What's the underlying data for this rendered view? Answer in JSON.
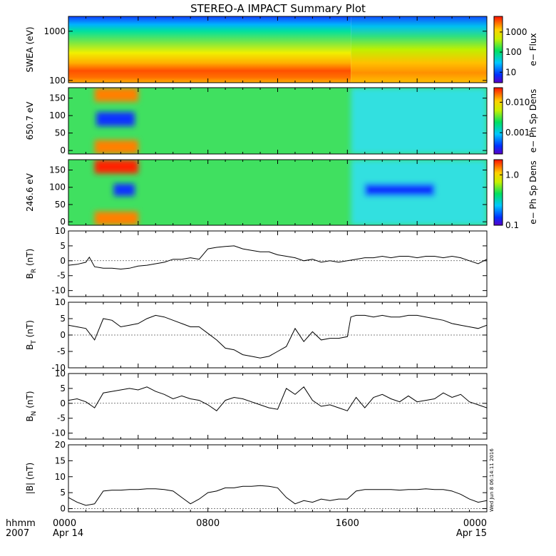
{
  "title": "STEREO-A IMPACT Summary Plot",
  "timestamp_label": "Wed Jun  8 06:14:11 2016",
  "x_axis": {
    "label_line1": "hhmm",
    "label_line2": "2007",
    "ticks": [
      {
        "t": 0,
        "top": "0000",
        "bottom": "Apr 14"
      },
      {
        "t": 8,
        "top": "0800",
        "bottom": ""
      },
      {
        "t": 16,
        "top": "1600",
        "bottom": ""
      },
      {
        "t": 24,
        "top": "0000",
        "bottom": "Apr 15"
      }
    ],
    "range_hours": [
      0,
      24
    ]
  },
  "chart_data": [
    {
      "id": "swea",
      "type": "heatmap",
      "ylabel": "SWEA (eV)",
      "yscale": "log",
      "ylim": [
        90,
        2000
      ],
      "yticks": [
        "100",
        "1000"
      ],
      "colorbar": {
        "label": "e− Flux",
        "scale": "log",
        "range": [
          3,
          6000
        ],
        "ticks": [
          "10",
          "100",
          "1000"
        ]
      },
      "features": [
        {
          "band": "low energy (~100-300 eV)",
          "hours": [
            0,
            16.2
          ],
          "level": "red"
        },
        {
          "band": "low energy (~100-300 eV)",
          "hours": [
            16.2,
            24
          ],
          "level": "orange"
        },
        {
          "band": "~400-1000 eV",
          "hours": [
            0,
            24
          ],
          "level": "yellow-green"
        },
        {
          "band": "~1500-2000 eV",
          "hours": [
            0,
            24
          ],
          "level": "blue"
        }
      ]
    },
    {
      "id": "pad650",
      "type": "heatmap",
      "ylabel": "650.7 eV",
      "ylim": [
        -10,
        180
      ],
      "yticks": [
        "0",
        "50",
        "100",
        "150"
      ],
      "colorbar": {
        "label": "e− Ph Sp Dens",
        "scale": "log",
        "range": [
          0.0002,
          0.03
        ],
        "ticks": [
          "0.001",
          "0.010"
        ]
      },
      "features": [
        {
          "hours": [
            1.5,
            4.0
          ],
          "pitch": [
            140,
            180
          ],
          "level": "orange"
        },
        {
          "hours": [
            1.5,
            4.0
          ],
          "pitch": [
            -10,
            30
          ],
          "level": "orange"
        },
        {
          "hours": [
            1.6,
            3.8
          ],
          "pitch": [
            70,
            110
          ],
          "level": "blue"
        },
        {
          "hours": [
            16.2,
            24
          ],
          "pitch": [
            -10,
            180
          ],
          "level": "cyan"
        }
      ]
    },
    {
      "id": "pad246",
      "type": "heatmap",
      "ylabel": "246.6 eV",
      "ylim": [
        -10,
        180
      ],
      "yticks": [
        "0",
        "50",
        "100",
        "150"
      ],
      "colorbar": {
        "label": "e− Ph Sp Dens",
        "scale": "log",
        "range": [
          0.1,
          2.0
        ],
        "ticks": [
          "0.1",
          "1.0"
        ]
      },
      "features": [
        {
          "hours": [
            1.5,
            4.0
          ],
          "pitch": [
            140,
            180
          ],
          "level": "red"
        },
        {
          "hours": [
            1.5,
            4.0
          ],
          "pitch": [
            -10,
            30
          ],
          "level": "orange"
        },
        {
          "hours": [
            2.6,
            3.8
          ],
          "pitch": [
            75,
            110
          ],
          "level": "blue"
        },
        {
          "hours": [
            16.2,
            24
          ],
          "pitch": [
            -10,
            180
          ],
          "level": "cyan"
        },
        {
          "hours": [
            17.0,
            21.0
          ],
          "pitch": [
            75,
            110
          ],
          "level": "blue"
        }
      ]
    },
    {
      "id": "br",
      "type": "line",
      "ylabel": "B",
      "ylabel_sub": "R",
      "ylabel_unit": " (nT)",
      "ylim": [
        -12,
        10
      ],
      "yticks": [
        "10",
        "5",
        "0",
        "-5",
        "-10"
      ],
      "x": [
        0,
        0.5,
        1.0,
        1.2,
        1.5,
        2.0,
        2.5,
        3.0,
        3.5,
        4.0,
        4.5,
        5.0,
        5.5,
        6.0,
        6.5,
        7.0,
        7.5,
        8.0,
        8.5,
        9.0,
        9.5,
        10.0,
        10.5,
        11.0,
        11.5,
        12.0,
        12.5,
        13.0,
        13.5,
        14.0,
        14.5,
        15.0,
        15.5,
        16.0,
        16.5,
        17.0,
        17.5,
        18.0,
        18.5,
        19.0,
        19.5,
        20.0,
        20.5,
        21.0,
        21.5,
        22.0,
        22.5,
        23.0,
        23.5,
        24.0
      ],
      "y": [
        -1.5,
        -1.2,
        -0.5,
        1.2,
        -2.0,
        -2.5,
        -2.5,
        -2.8,
        -2.5,
        -1.8,
        -1.5,
        -1.0,
        -0.5,
        0.5,
        0.5,
        1.0,
        0.5,
        4.0,
        4.5,
        4.8,
        5.0,
        4.0,
        3.5,
        3.0,
        3.0,
        2.0,
        1.5,
        1.0,
        0.0,
        0.5,
        -0.5,
        0.0,
        -0.5,
        0.0,
        0.5,
        1.0,
        1.0,
        1.5,
        1.0,
        1.5,
        1.5,
        1.0,
        1.5,
        1.5,
        1.0,
        1.5,
        1.0,
        0.0,
        -1.0,
        0.5
      ]
    },
    {
      "id": "bt",
      "type": "line",
      "ylabel": "B",
      "ylabel_sub": "T",
      "ylabel_unit": " (nT)",
      "ylim": [
        -10,
        10
      ],
      "yticks": [
        "10",
        "5",
        "0",
        "-5",
        "-10"
      ],
      "x": [
        0,
        0.5,
        1.0,
        1.5,
        2.0,
        2.5,
        3.0,
        3.5,
        4.0,
        4.5,
        5.0,
        5.5,
        6.0,
        6.5,
        7.0,
        7.5,
        8.0,
        8.5,
        9.0,
        9.5,
        10.0,
        10.5,
        11.0,
        11.5,
        12.0,
        12.5,
        13.0,
        13.5,
        14.0,
        14.5,
        15.0,
        15.5,
        16.0,
        16.2,
        16.5,
        17.0,
        17.5,
        18.0,
        18.5,
        19.0,
        19.5,
        20.0,
        20.5,
        21.0,
        21.5,
        22.0,
        22.5,
        23.0,
        23.5,
        24.0
      ],
      "y": [
        3.0,
        2.5,
        2.0,
        -1.5,
        5.0,
        4.5,
        2.5,
        3.0,
        3.5,
        5.0,
        6.0,
        5.5,
        4.5,
        3.5,
        2.5,
        2.5,
        0.5,
        -1.5,
        -4.0,
        -4.5,
        -6.0,
        -6.5,
        -7.0,
        -6.5,
        -5.0,
        -3.5,
        2.0,
        -2.0,
        1.0,
        -1.5,
        -1.0,
        -1.0,
        -0.5,
        5.5,
        6.0,
        6.0,
        5.5,
        6.0,
        5.5,
        5.5,
        6.0,
        6.0,
        5.5,
        5.0,
        4.5,
        3.5,
        3.0,
        2.5,
        2.0,
        3.0
      ]
    },
    {
      "id": "bn",
      "type": "line",
      "ylabel": "B",
      "ylabel_sub": "N",
      "ylabel_unit": " (nT)",
      "ylim": [
        -12,
        10
      ],
      "yticks": [
        "10",
        "5",
        "0",
        "-5",
        "-10"
      ],
      "x": [
        0,
        0.5,
        1.0,
        1.5,
        2.0,
        2.5,
        3.0,
        3.5,
        4.0,
        4.5,
        5.0,
        5.5,
        6.0,
        6.5,
        7.0,
        7.5,
        8.0,
        8.5,
        9.0,
        9.5,
        10.0,
        10.5,
        11.0,
        11.5,
        12.0,
        12.5,
        13.0,
        13.5,
        14.0,
        14.5,
        15.0,
        15.5,
        16.0,
        16.5,
        17.0,
        17.5,
        18.0,
        18.5,
        19.0,
        19.5,
        20.0,
        20.5,
        21.0,
        21.5,
        22.0,
        22.5,
        23.0,
        23.5,
        24.0
      ],
      "y": [
        1.0,
        1.5,
        0.5,
        -1.5,
        3.5,
        4.0,
        4.5,
        5.0,
        4.5,
        5.5,
        4.0,
        3.0,
        1.5,
        2.5,
        1.5,
        1.0,
        -0.5,
        -2.5,
        1.0,
        2.0,
        1.5,
        0.5,
        -0.5,
        -1.5,
        -2.0,
        5.0,
        3.0,
        5.5,
        1.0,
        -1.0,
        -0.5,
        -1.5,
        -2.5,
        2.0,
        -1.5,
        2.0,
        3.0,
        1.5,
        0.5,
        2.5,
        0.5,
        1.0,
        1.5,
        3.5,
        2.0,
        3.0,
        0.5,
        -0.5,
        -1.5
      ]
    },
    {
      "id": "bmag",
      "type": "line",
      "ylabel": "|B|",
      "ylabel_sub": "",
      "ylabel_unit": " (nT)",
      "ylim": [
        -1,
        20
      ],
      "yticks": [
        "20",
        "15",
        "10",
        "5",
        "0"
      ],
      "x": [
        0,
        0.5,
        1.0,
        1.5,
        2.0,
        2.5,
        3.0,
        3.5,
        4.0,
        4.5,
        5.0,
        5.5,
        6.0,
        6.5,
        7.0,
        7.5,
        8.0,
        8.5,
        9.0,
        9.5,
        10.0,
        10.5,
        11.0,
        11.5,
        12.0,
        12.5,
        13.0,
        13.5,
        14.0,
        14.5,
        15.0,
        15.5,
        16.0,
        16.5,
        17.0,
        17.5,
        18.0,
        18.5,
        19.0,
        19.5,
        20.0,
        20.5,
        21.0,
        21.5,
        22.0,
        22.5,
        23.0,
        23.5,
        24.0
      ],
      "y": [
        3.5,
        2.0,
        1.0,
        1.5,
        5.5,
        5.8,
        5.8,
        6.0,
        6.0,
        6.2,
        6.2,
        6.0,
        5.5,
        3.5,
        1.5,
        3.0,
        5.0,
        5.5,
        6.5,
        6.5,
        7.0,
        7.0,
        7.2,
        7.0,
        6.5,
        3.5,
        1.5,
        2.5,
        2.0,
        3.0,
        2.5,
        3.0,
        3.0,
        5.5,
        6.0,
        6.0,
        6.0,
        6.0,
        5.8,
        6.0,
        6.0,
        6.2,
        6.0,
        6.0,
        5.5,
        4.5,
        3.0,
        2.0,
        2.5
      ]
    }
  ]
}
